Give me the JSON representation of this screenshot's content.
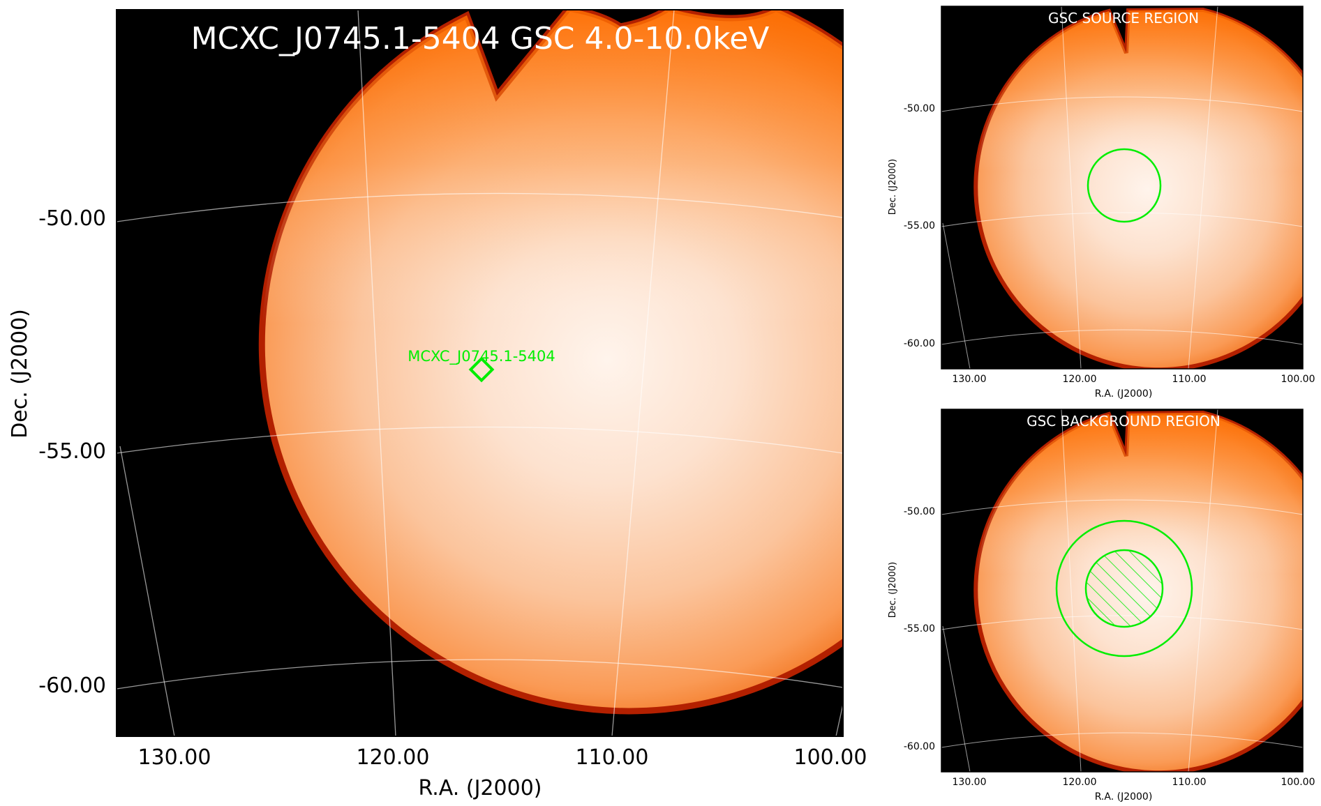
{
  "main_panel": {
    "title": "MCXC_J0745.1-5404 GSC 4.0-10.0keV",
    "xlabel": "R.A. (J2000)",
    "ylabel": "Dec. (J2000)",
    "xticks": [
      "130.00",
      "120.00",
      "110.00",
      "100.00"
    ],
    "yticks": [
      "-50.00",
      "-55.00",
      "-60.00"
    ],
    "source_label": "MCXC_J0745.1-5404"
  },
  "source_panel": {
    "title": "GSC SOURCE REGION",
    "xlabel": "R.A. (J2000)",
    "ylabel": "Dec. (J2000)",
    "xticks": [
      "130.00",
      "120.00",
      "110.00",
      "100.00"
    ],
    "yticks": [
      "-50.00",
      "-55.00",
      "-60.00"
    ]
  },
  "background_panel": {
    "title": "GSC BACKGROUND REGION",
    "xlabel": "R.A. (J2000)",
    "ylabel": "Dec. (J2000)",
    "xticks": [
      "130.00",
      "120.00",
      "110.00",
      "100.00"
    ],
    "yticks": [
      "-50.00",
      "-55.00",
      "-60.00"
    ]
  },
  "colors": {
    "region": "#00ee00",
    "grid": "#ffffff",
    "background": "#000000",
    "image_center": "#fff3ea",
    "image_edge": "#ff6a00"
  }
}
